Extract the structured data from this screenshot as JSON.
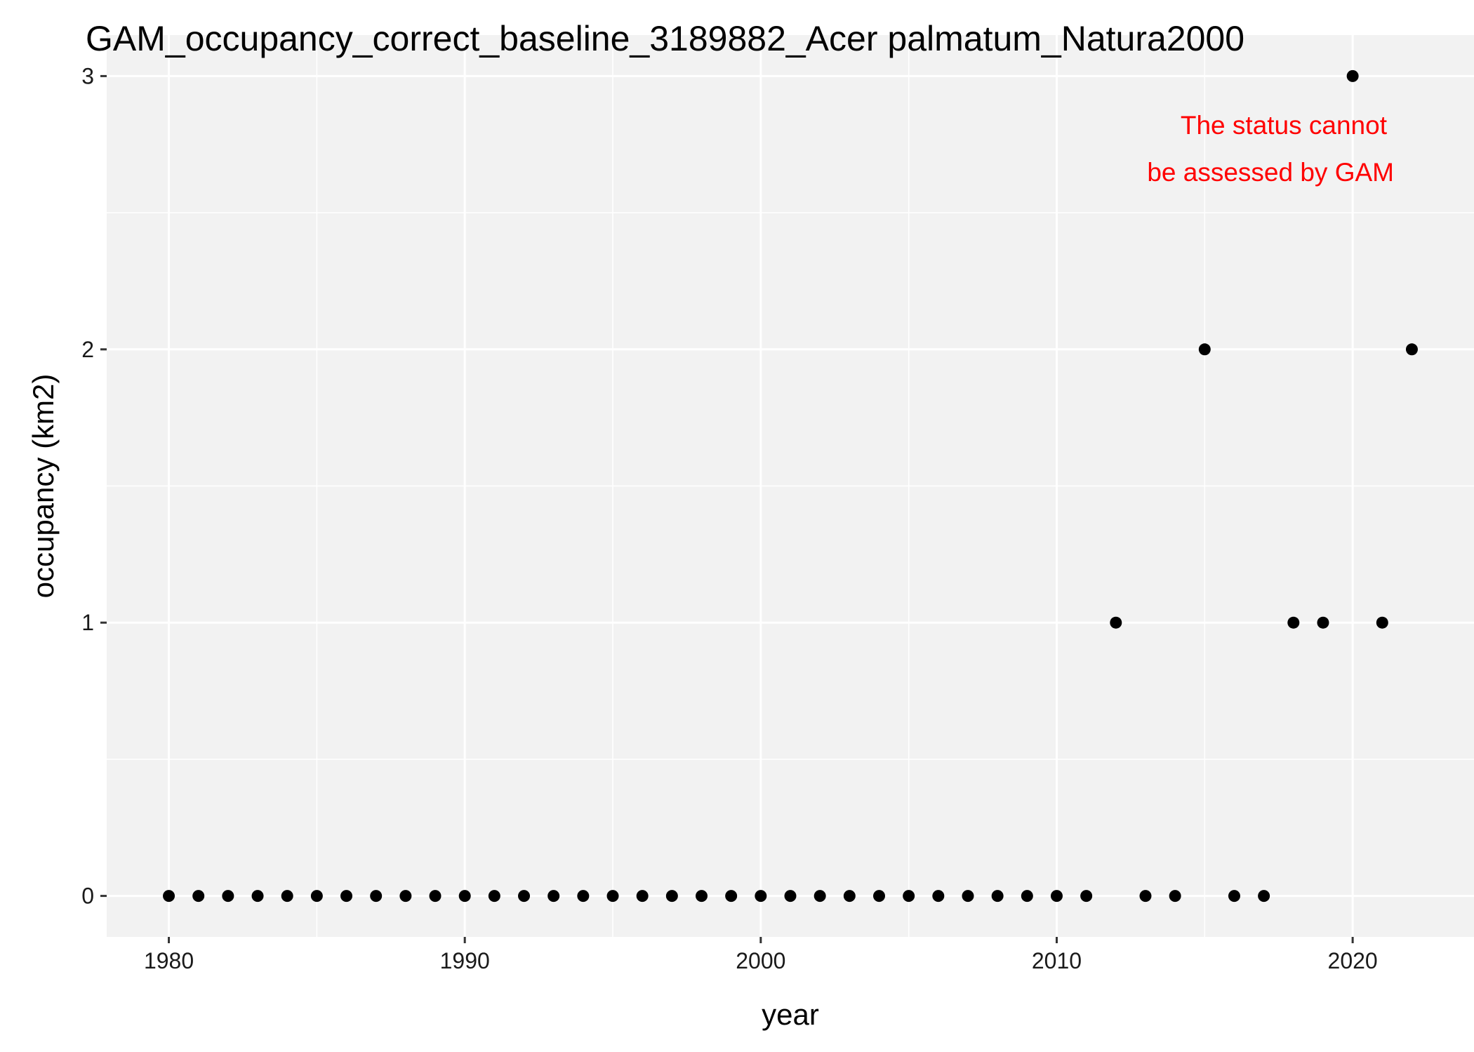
{
  "chart_data": {
    "type": "scatter",
    "title": "GAM_occupancy_correct_baseline_3189882_Acer palmatum_Natura2000",
    "xlabel": "year",
    "ylabel": "occupancy (km2)",
    "xlim": [
      1977.9,
      2024.1
    ],
    "ylim": [
      -0.15,
      3.15
    ],
    "x_ticks": [
      1980,
      1990,
      2000,
      2010,
      2020
    ],
    "y_ticks": [
      0,
      1,
      2,
      3
    ],
    "grid": true,
    "legend": "none",
    "colors": {
      "panel_background": "#f2f2f2",
      "grid_major": "#ffffff",
      "grid_minor": "#ffffff",
      "point": "#000000",
      "annotation": "#ff0000"
    },
    "annotation": {
      "lines": [
        "The status cannot",
        "be assessed by GAM"
      ]
    },
    "points": [
      {
        "x": 1980,
        "y": 0
      },
      {
        "x": 1981,
        "y": 0
      },
      {
        "x": 1982,
        "y": 0
      },
      {
        "x": 1983,
        "y": 0
      },
      {
        "x": 1984,
        "y": 0
      },
      {
        "x": 1985,
        "y": 0
      },
      {
        "x": 1986,
        "y": 0
      },
      {
        "x": 1987,
        "y": 0
      },
      {
        "x": 1988,
        "y": 0
      },
      {
        "x": 1989,
        "y": 0
      },
      {
        "x": 1990,
        "y": 0
      },
      {
        "x": 1991,
        "y": 0
      },
      {
        "x": 1992,
        "y": 0
      },
      {
        "x": 1993,
        "y": 0
      },
      {
        "x": 1994,
        "y": 0
      },
      {
        "x": 1995,
        "y": 0
      },
      {
        "x": 1996,
        "y": 0
      },
      {
        "x": 1997,
        "y": 0
      },
      {
        "x": 1998,
        "y": 0
      },
      {
        "x": 1999,
        "y": 0
      },
      {
        "x": 2000,
        "y": 0
      },
      {
        "x": 2001,
        "y": 0
      },
      {
        "x": 2002,
        "y": 0
      },
      {
        "x": 2003,
        "y": 0
      },
      {
        "x": 2004,
        "y": 0
      },
      {
        "x": 2005,
        "y": 0
      },
      {
        "x": 2006,
        "y": 0
      },
      {
        "x": 2007,
        "y": 0
      },
      {
        "x": 2008,
        "y": 0
      },
      {
        "x": 2009,
        "y": 0
      },
      {
        "x": 2010,
        "y": 0
      },
      {
        "x": 2011,
        "y": 0
      },
      {
        "x": 2012,
        "y": 1
      },
      {
        "x": 2013,
        "y": 0
      },
      {
        "x": 2014,
        "y": 0
      },
      {
        "x": 2015,
        "y": 2
      },
      {
        "x": 2016,
        "y": 0
      },
      {
        "x": 2017,
        "y": 0
      },
      {
        "x": 2018,
        "y": 1
      },
      {
        "x": 2019,
        "y": 1
      },
      {
        "x": 2020,
        "y": 3
      },
      {
        "x": 2021,
        "y": 1
      },
      {
        "x": 2022,
        "y": 2
      }
    ]
  }
}
